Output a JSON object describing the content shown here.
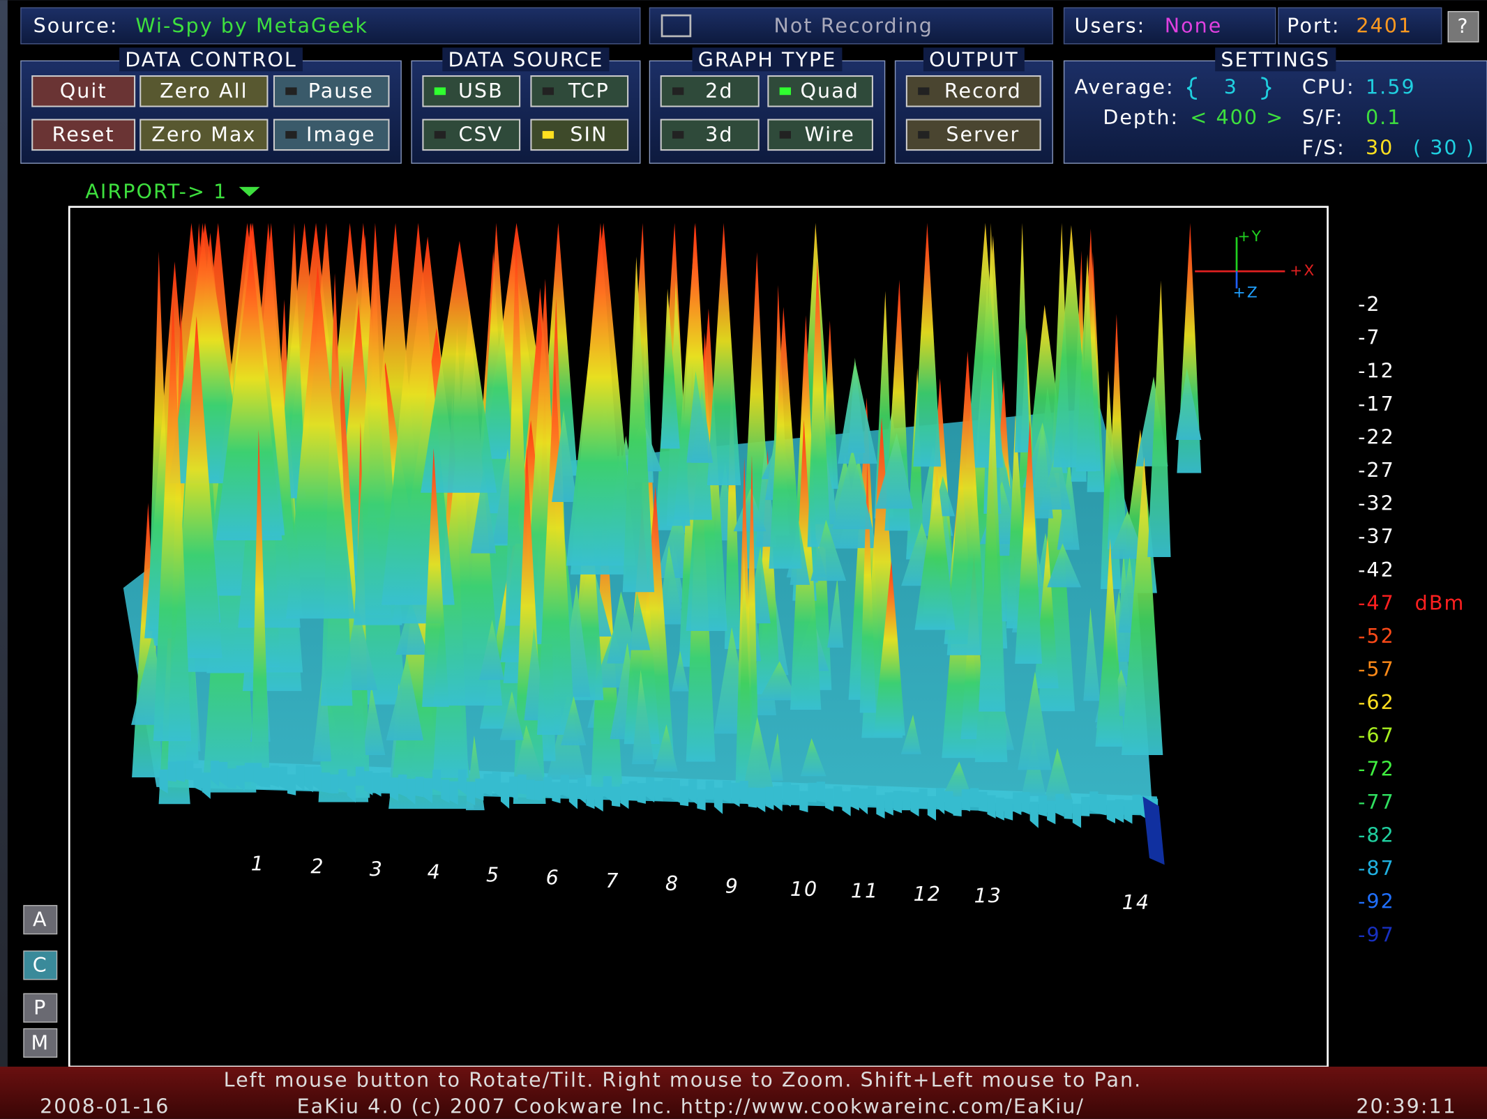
{
  "header": {
    "source_label": "Source:",
    "source": "Wi-Spy by MetaGeek",
    "recording": "Not Recording",
    "users_label": "Users:",
    "users": "None",
    "port_label": "Port:",
    "port": "2401",
    "help": "?"
  },
  "panels": [
    {
      "title": "DATA CONTROL",
      "buttons": [
        "Quit",
        "Zero All",
        "Pause",
        "Reset",
        "Zero Max",
        "Image"
      ]
    },
    {
      "title": "DATA SOURCE",
      "buttons": [
        "USB",
        "TCP",
        "CSV",
        "SIN"
      ]
    },
    {
      "title": "GRAPH TYPE",
      "buttons": [
        "2d",
        "Quad",
        "3d",
        "Wire"
      ]
    },
    {
      "title": "OUTPUT",
      "buttons": [
        "Record",
        "Server"
      ]
    }
  ],
  "settings": {
    "title": "SETTINGS",
    "average_label": "Average:",
    "average": "3",
    "depth_label": "Depth:",
    "depth": "< 400 >",
    "cpu_label": "CPU:",
    "cpu": "1.59",
    "sf_label": "S/F:",
    "sf": "0.1",
    "fs_label": "F/S:",
    "fs": "30",
    "fs_actual": "( 30 )"
  },
  "graph": {
    "device": "AIRPORT-> 1",
    "axes": {
      "y": "+Y",
      "x": "+X",
      "z": "+Z"
    },
    "scale": [
      "-2",
      "-7",
      "-12",
      "-17",
      "-22",
      "-27",
      "-32",
      "-37",
      "-42",
      "-47",
      "-52",
      "-57",
      "-62",
      "-67",
      "-72",
      "-77",
      "-82",
      "-87",
      "-92",
      "-97"
    ],
    "unit": "dBm",
    "channels": [
      "1",
      "2",
      "3",
      "4",
      "5",
      "6",
      "7",
      "8",
      "9",
      "10",
      "11",
      "12",
      "13",
      "14"
    ]
  },
  "side_buttons": [
    "A",
    "C",
    "P",
    "M"
  ],
  "footer": {
    "hint": "Left mouse button to Rotate/Tilt. Right mouse to Zoom. Shift+Left mouse to Pan.",
    "date": "2008-01-16",
    "credit": "EaKiu 4.0 (c) 2007 Cookware Inc. http://www.cookwareinc.com/EaKiu/",
    "time": "20:39:11"
  }
}
